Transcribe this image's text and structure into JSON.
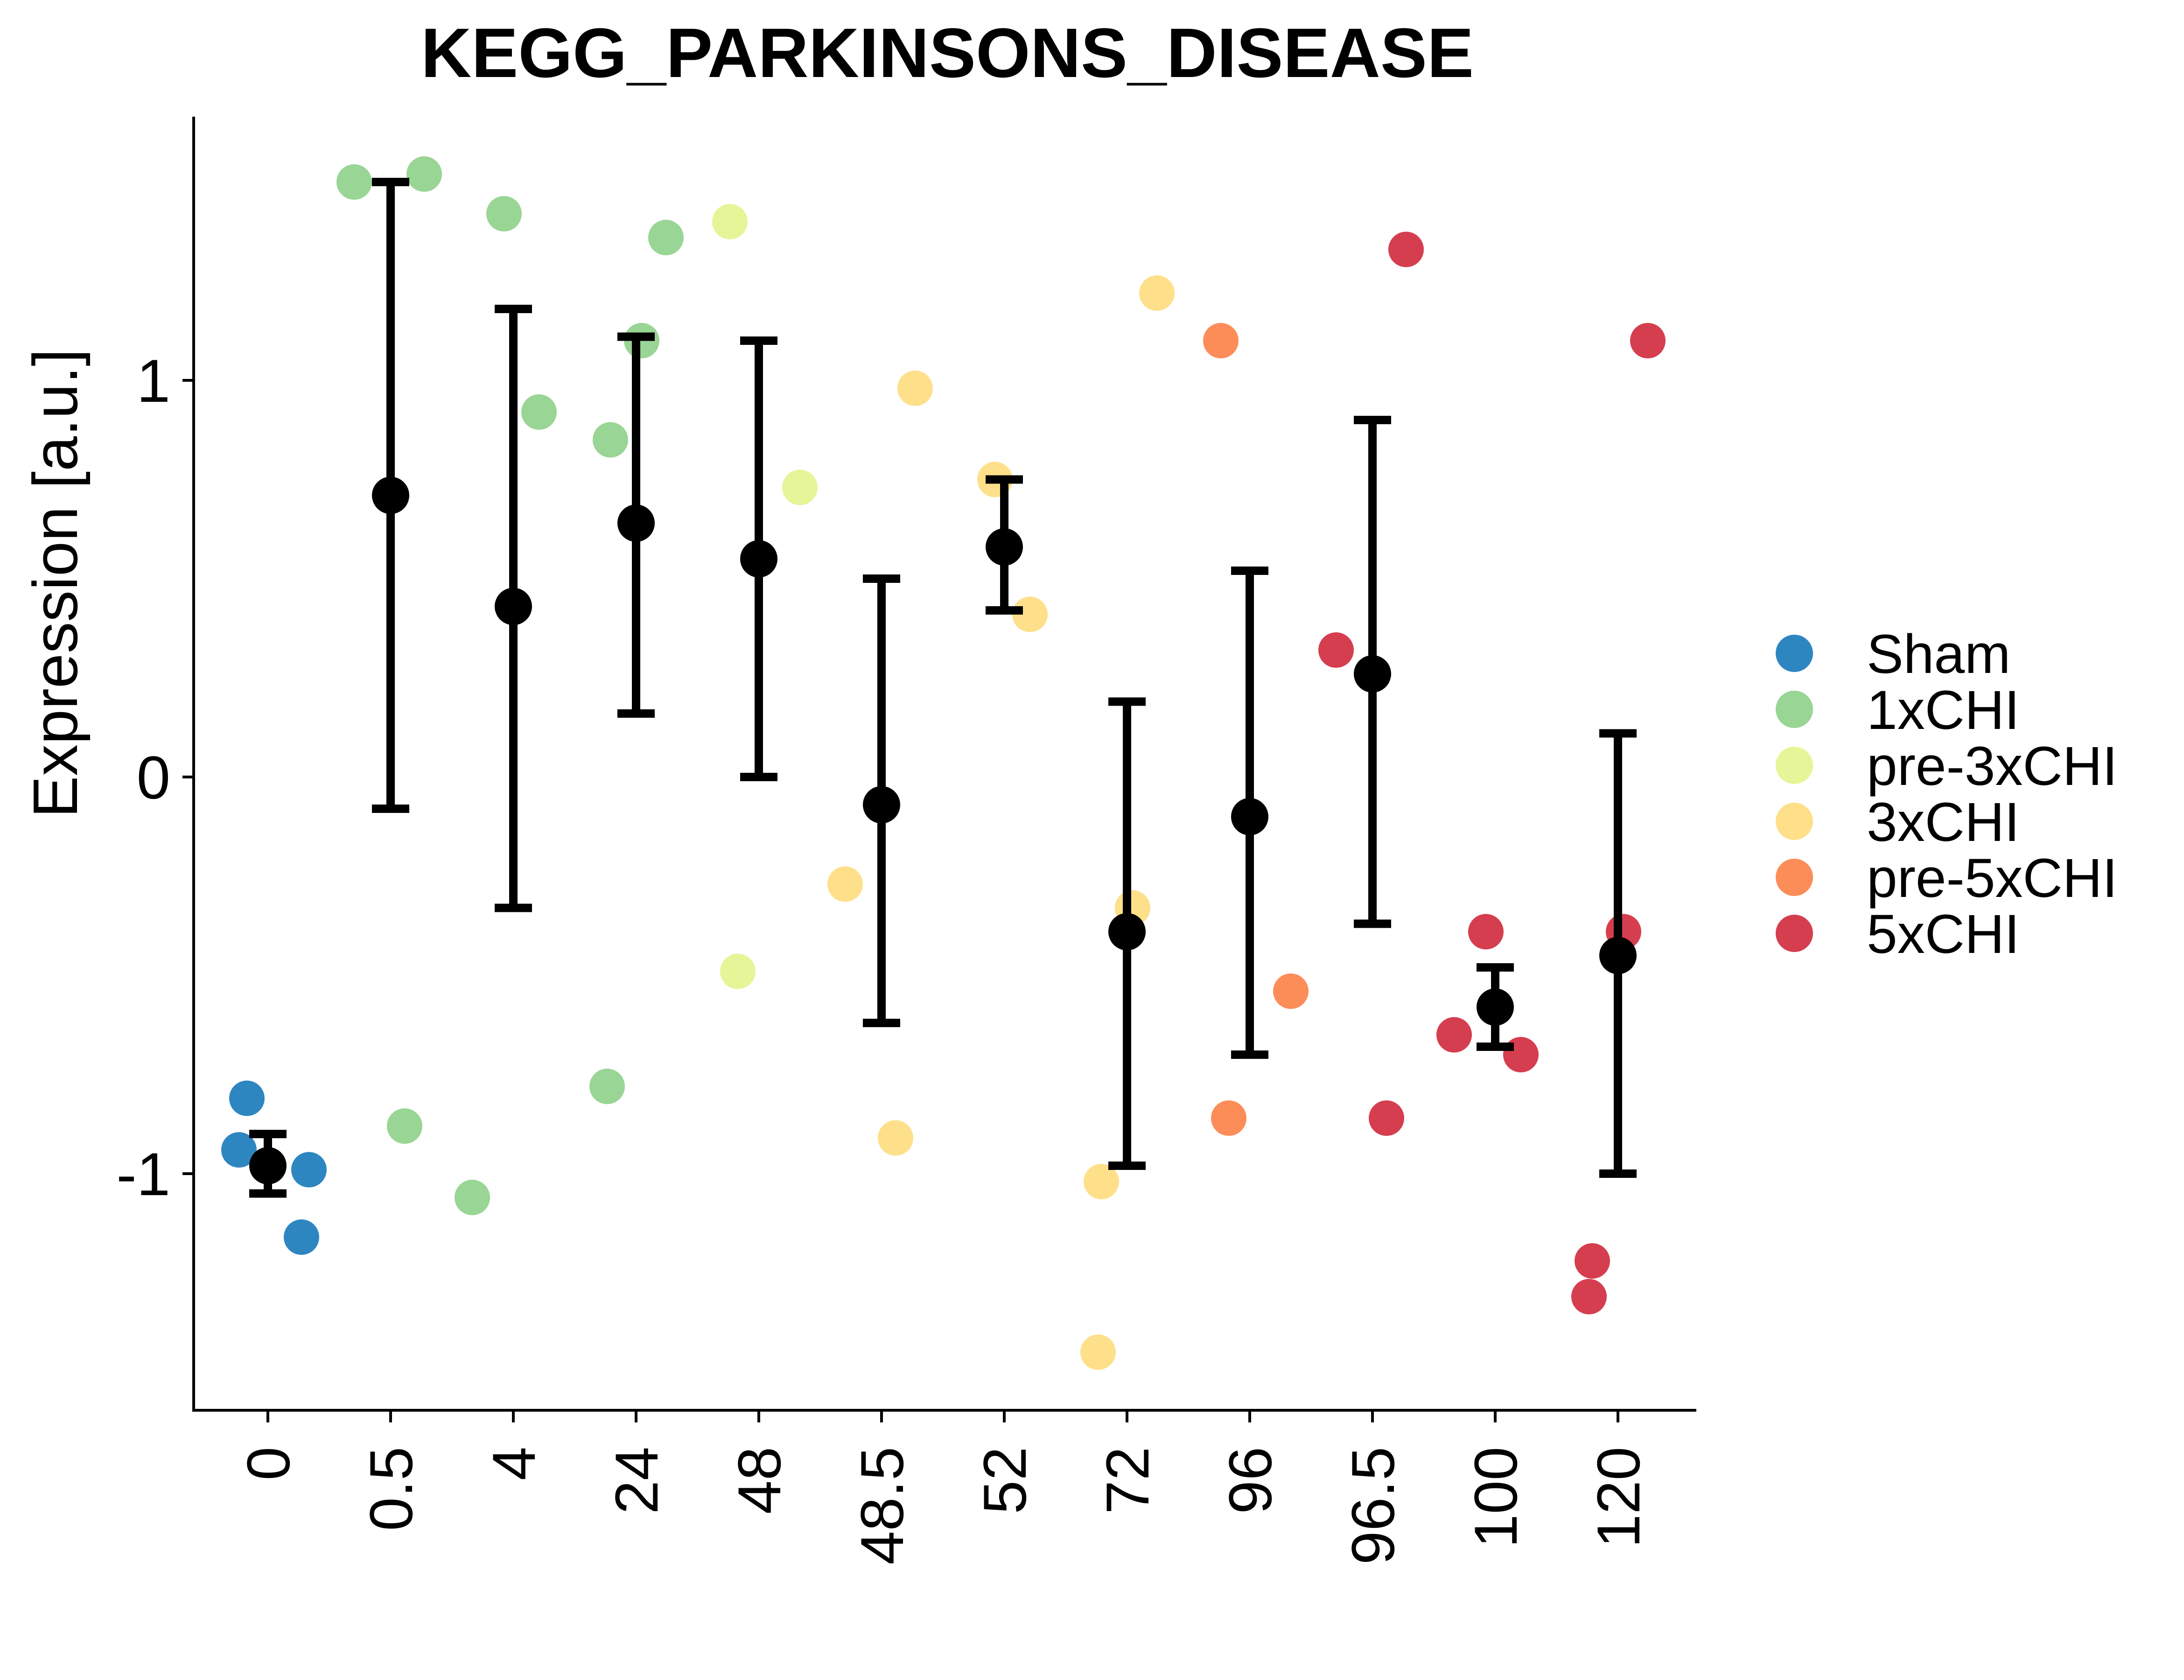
{
  "chart_data": {
    "type": "scatter",
    "title": "KEGG_PARKINSONS_DISEASE",
    "xlabel": "",
    "ylabel": "Expression [a.u.]",
    "ylim": [
      -1.6,
      1.7
    ],
    "yticks": [
      -1,
      0,
      1
    ],
    "categories": [
      "0",
      "0.5",
      "4",
      "24",
      "48",
      "48.5",
      "52",
      "72",
      "96",
      "96.5",
      "100",
      "120"
    ],
    "grid": false,
    "legend_position": "right",
    "series": [
      {
        "name": "Sham",
        "color": "#2E86C1",
        "points": [
          {
            "x": "0",
            "y": -0.94
          },
          {
            "x": "0",
            "y": -0.99
          },
          {
            "x": "0",
            "y": -0.81
          },
          {
            "x": "0",
            "y": -1.16
          }
        ]
      },
      {
        "name": "1xCHI",
        "color": "#99D594",
        "points": [
          {
            "x": "0.5",
            "y": 1.52
          },
          {
            "x": "0.5",
            "y": 1.5
          },
          {
            "x": "0.5",
            "y": -0.88
          },
          {
            "x": "4",
            "y": 1.42
          },
          {
            "x": "4",
            "y": 0.92
          },
          {
            "x": "4",
            "y": -1.06
          },
          {
            "x": "24",
            "y": 1.36
          },
          {
            "x": "24",
            "y": 1.1
          },
          {
            "x": "24",
            "y": 0.85
          },
          {
            "x": "24",
            "y": -0.78
          }
        ]
      },
      {
        "name": "pre-3xCHI",
        "color": "#E6F598",
        "points": [
          {
            "x": "48",
            "y": 1.4
          },
          {
            "x": "48",
            "y": 0.73
          },
          {
            "x": "48",
            "y": -0.49
          }
        ]
      },
      {
        "name": "3xCHI",
        "color": "#FEE08B",
        "points": [
          {
            "x": "48.5",
            "y": 0.98
          },
          {
            "x": "48.5",
            "y": -0.27
          },
          {
            "x": "48.5",
            "y": -0.91
          },
          {
            "x": "52",
            "y": 0.75
          },
          {
            "x": "52",
            "y": 0.41
          },
          {
            "x": "72",
            "y": 1.22
          },
          {
            "x": "72",
            "y": -0.33
          },
          {
            "x": "72",
            "y": -1.02
          },
          {
            "x": "72",
            "y": -1.45
          }
        ]
      },
      {
        "name": "pre-5xCHI",
        "color": "#FC8D59",
        "points": [
          {
            "x": "96",
            "y": 1.1
          },
          {
            "x": "96",
            "y": -0.54
          },
          {
            "x": "96",
            "y": -0.86
          }
        ]
      },
      {
        "name": "5xCHI",
        "color": "#D53E4F",
        "points": [
          {
            "x": "96.5",
            "y": 1.33
          },
          {
            "x": "96.5",
            "y": 0.32
          },
          {
            "x": "96.5",
            "y": -0.86
          },
          {
            "x": "100",
            "y": -0.39
          },
          {
            "x": "100",
            "y": -0.7
          },
          {
            "x": "100",
            "y": -0.65
          },
          {
            "x": "120",
            "y": 1.1
          },
          {
            "x": "120",
            "y": -0.39
          },
          {
            "x": "120",
            "y": -1.22
          },
          {
            "x": "120",
            "y": -1.31
          }
        ]
      }
    ],
    "summary": [
      {
        "x": "0",
        "mean": -0.98,
        "lower": -1.05,
        "upper": -0.9
      },
      {
        "x": "0.5",
        "mean": 0.71,
        "lower": -0.08,
        "upper": 1.5
      },
      {
        "x": "4",
        "mean": 0.43,
        "lower": -0.33,
        "upper": 1.18
      },
      {
        "x": "24",
        "mean": 0.64,
        "lower": 0.16,
        "upper": 1.11
      },
      {
        "x": "48",
        "mean": 0.55,
        "lower": 0.0,
        "upper": 1.1
      },
      {
        "x": "48.5",
        "mean": -0.07,
        "lower": -0.62,
        "upper": 0.5
      },
      {
        "x": "52",
        "mean": 0.58,
        "lower": 0.42,
        "upper": 0.75
      },
      {
        "x": "72",
        "mean": -0.39,
        "lower": -0.98,
        "upper": 0.19
      },
      {
        "x": "96",
        "mean": -0.1,
        "lower": -0.7,
        "upper": 0.52
      },
      {
        "x": "96.5",
        "mean": 0.26,
        "lower": -0.37,
        "upper": 0.9
      },
      {
        "x": "100",
        "mean": -0.58,
        "lower": -0.68,
        "upper": -0.48
      },
      {
        "x": "120",
        "mean": -0.45,
        "lower": -1.0,
        "upper": 0.11
      }
    ]
  }
}
